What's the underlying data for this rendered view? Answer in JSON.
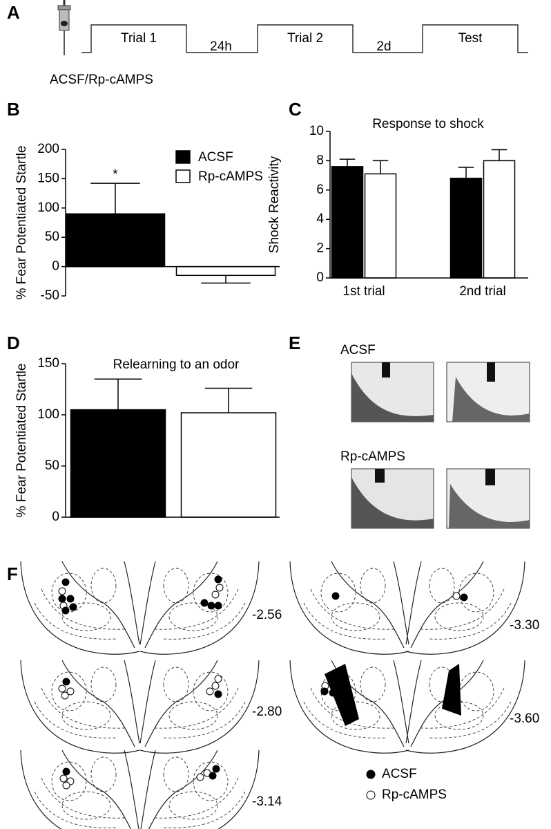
{
  "panel_labels": [
    "A",
    "B",
    "C",
    "D",
    "E",
    "F"
  ],
  "timeline": {
    "trials": [
      "Trial 1",
      "Trial 2",
      "Test"
    ],
    "intervals": [
      "24h",
      "2d"
    ],
    "treatment": "ACSF/Rp-cAMPS"
  },
  "chart_data": [
    {
      "type": "bar",
      "ylabel": "% Fear Potentiated Startle",
      "annotation": "*",
      "legend": "upper right",
      "ylim": [
        -50,
        200
      ],
      "yticks": [
        -50,
        0,
        50,
        100,
        150,
        200
      ],
      "series": [
        {
          "name": "ACSF",
          "color": "#000000",
          "values": [
            90
          ],
          "errors": [
            52
          ]
        },
        {
          "name": "Rp-cAMPS",
          "color": "#ffffff",
          "values": [
            -15
          ],
          "errors": [
            13
          ]
        }
      ]
    },
    {
      "type": "bar",
      "title": "Response to shock",
      "ylabel": "Shock Reactivity",
      "categories": [
        "1st trial",
        "2nd trial"
      ],
      "ylim": [
        0,
        10
      ],
      "yticks": [
        0,
        2,
        4,
        6,
        8,
        10
      ],
      "series": [
        {
          "color": "#000000",
          "values": [
            7.6,
            6.8
          ],
          "errors": [
            0.5,
            0.75
          ]
        },
        {
          "color": "#ffffff",
          "values": [
            7.1,
            8.0
          ],
          "errors": [
            0.9,
            0.75
          ]
        }
      ]
    },
    {
      "type": "bar",
      "title": "Relearning to an odor",
      "ylabel": "% Fear Potentiated Startle",
      "ylim": [
        0,
        150
      ],
      "yticks": [
        0,
        50,
        100,
        150
      ],
      "series": [
        {
          "color": "#000000",
          "values": [
            105
          ],
          "errors": [
            30
          ]
        },
        {
          "color": "#ffffff",
          "values": [
            102
          ],
          "errors": [
            24
          ]
        }
      ]
    }
  ],
  "histology": {
    "groups": [
      "ACSF",
      "Rp-cAMPS"
    ]
  },
  "atlas": {
    "levels": [
      "-2.56",
      "-2.80",
      "-3.14",
      "-3.30",
      "-3.60"
    ],
    "legend": [
      "ACSF",
      "Rp-cAMPS"
    ]
  }
}
